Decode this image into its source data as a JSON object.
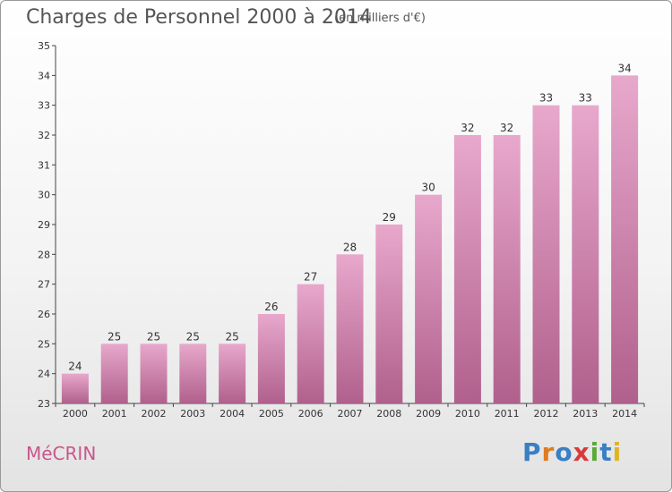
{
  "header": {
    "title": "Charges de Personnel 2000 à 2014",
    "subtitle": "(en milliers d'€)"
  },
  "footer": {
    "commune": "MéCRIN",
    "logo": "Proxiti",
    "logo_colors": [
      "#3a7fc4",
      "#e07b22",
      "#3a7fc4",
      "#d83a3a",
      "#5aaa3a",
      "#3a7fc4",
      "#e0b422"
    ]
  },
  "chart_data": {
    "type": "bar",
    "title": "Charges de Personnel 2000 à 2014",
    "subtitle": "(en milliers d'€)",
    "categories": [
      "2000",
      "2001",
      "2002",
      "2003",
      "2004",
      "2005",
      "2006",
      "2007",
      "2008",
      "2009",
      "2010",
      "2011",
      "2012",
      "2013",
      "2014"
    ],
    "values": [
      24,
      25,
      25,
      25,
      25,
      26,
      27,
      28,
      29,
      30,
      32,
      32,
      33,
      33,
      34
    ],
    "ylim": [
      23,
      35
    ],
    "yticks": [
      23,
      24,
      25,
      26,
      27,
      28,
      29,
      30,
      31,
      32,
      33,
      34,
      35
    ],
    "bar_color_top": "#e8a8cc",
    "bar_color_bottom": "#b0608c",
    "grid": false,
    "data_labels": true
  }
}
